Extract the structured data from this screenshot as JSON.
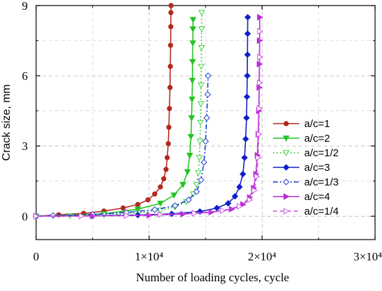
{
  "chart_data": {
    "type": "line",
    "xlabel": "Number of loading cycles, cycle",
    "ylabel": "Crack size, mm",
    "xlim": [
      0,
      30000
    ],
    "ylim": [
      -1,
      9
    ],
    "x_tick_values": [
      0,
      10000,
      20000,
      30000
    ],
    "x_tick_labels": [
      "0",
      "1×10⁴",
      "2×10⁴",
      "3×10⁴"
    ],
    "y_tick_values": [
      0,
      3,
      6,
      9
    ],
    "y_tick_labels": [
      "0",
      "3",
      "6",
      "9"
    ],
    "legend_position": "right",
    "grid": true,
    "series": [
      {
        "name": "a/c=1",
        "color": "#b22a1e",
        "marker": "circle",
        "filled": true,
        "dash": "solid",
        "x": [
          0,
          2000,
          4200,
          6000,
          7700,
          9000,
          9900,
          10500,
          11000,
          11300,
          11500,
          11600,
          11700,
          11750,
          11800,
          11850,
          11880,
          11900,
          11920,
          11930,
          11945
        ],
        "y": [
          0,
          0.06,
          0.12,
          0.22,
          0.35,
          0.5,
          0.7,
          0.95,
          1.25,
          1.6,
          2.0,
          2.5,
          3.1,
          3.8,
          4.6,
          5.5,
          6.4,
          7.3,
          8.1,
          8.7,
          9.0
        ]
      },
      {
        "name": "a/c=2",
        "color": "#22c422",
        "marker": "triangle-down",
        "filled": true,
        "dash": "solid",
        "x": [
          0,
          6000,
          9000,
          11000,
          12200,
          13000,
          13400,
          13600,
          13700,
          13760,
          13800,
          13830,
          13850,
          13870,
          13880,
          13890
        ],
        "y": [
          0,
          0.1,
          0.3,
          0.55,
          0.9,
          1.35,
          1.9,
          2.6,
          3.4,
          4.2,
          5.0,
          5.8,
          6.6,
          7.4,
          8.0,
          8.4
        ]
      },
      {
        "name": "a/c=1/2",
        "color": "#3fd23f",
        "marker": "triangle-down",
        "filled": false,
        "dash": "dot",
        "x": [
          0,
          3000,
          6000,
          9000,
          11000,
          12300,
          13300,
          13900,
          14200,
          14350,
          14450,
          14500,
          14550,
          14580,
          14600,
          14620,
          14640,
          14650,
          14660
        ],
        "y": [
          0,
          0.02,
          0.06,
          0.14,
          0.25,
          0.4,
          0.62,
          0.95,
          1.35,
          1.85,
          2.5,
          3.2,
          4.0,
          4.8,
          5.6,
          6.4,
          7.2,
          8.0,
          8.7
        ]
      },
      {
        "name": "a/c=3",
        "color": "#1020c8",
        "marker": "diamond",
        "filled": true,
        "dash": "solid",
        "x": [
          0,
          5000,
          9000,
          12000,
          14500,
          16000,
          17000,
          17600,
          18000,
          18300,
          18450,
          18550,
          18620,
          18660,
          18690,
          18710,
          18720,
          18730
        ],
        "y": [
          0,
          0.02,
          0.05,
          0.1,
          0.2,
          0.35,
          0.55,
          0.85,
          1.25,
          1.8,
          2.5,
          3.3,
          4.2,
          5.1,
          6.0,
          6.9,
          7.8,
          8.5
        ]
      },
      {
        "name": "a/c=1/3",
        "color": "#1e3ed0",
        "marker": "diamond",
        "filled": false,
        "dash": "dashdot",
        "x": [
          0,
          1500,
          5000,
          8000,
          10500,
          12300,
          13500,
          14200,
          14600,
          14850,
          15000,
          15100,
          15180,
          15220
        ],
        "y": [
          0,
          0.03,
          0.08,
          0.16,
          0.28,
          0.45,
          0.7,
          1.05,
          1.55,
          2.3,
          3.2,
          4.2,
          5.2,
          6.0
        ]
      },
      {
        "name": "a/c=4",
        "color": "#b829d6",
        "marker": "triangle-right",
        "filled": true,
        "dash": "solid",
        "x": [
          0,
          5000,
          10000,
          13000,
          15500,
          17300,
          18300,
          18900,
          19250,
          19450,
          19580,
          19660,
          19710,
          19740,
          19760,
          19775,
          19790
        ],
        "y": [
          0,
          0.01,
          0.04,
          0.09,
          0.17,
          0.3,
          0.5,
          0.8,
          1.2,
          1.8,
          2.6,
          3.5,
          4.5,
          5.5,
          6.5,
          7.5,
          8.5
        ]
      },
      {
        "name": "a/c=1/4",
        "color": "#cc55e0",
        "marker": "triangle-right",
        "filled": false,
        "dash": "dash",
        "x": [
          0,
          4000,
          8000,
          11000,
          14000,
          16500,
          18000,
          18900,
          19300,
          19520,
          19640,
          19710,
          19750,
          19775,
          19790,
          19800
        ],
        "y": [
          0,
          0.01,
          0.03,
          0.07,
          0.13,
          0.24,
          0.42,
          0.7,
          1.1,
          1.7,
          2.5,
          3.5,
          4.6,
          5.7,
          6.8,
          7.9
        ]
      }
    ]
  }
}
